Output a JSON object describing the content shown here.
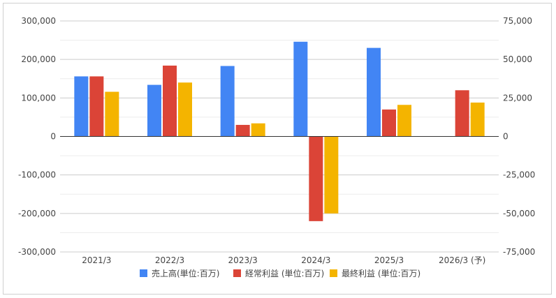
{
  "chart_data": {
    "type": "bar",
    "categories": [
      "2021/3",
      "2022/3",
      "2023/3",
      "2024/3",
      "2025/3",
      "2026/3 (予)"
    ],
    "series": [
      {
        "name": "売上高(単位:百万)",
        "axis": "left",
        "color": "#4285F4",
        "values": [
          156000,
          134000,
          183000,
          246000,
          230000,
          null
        ]
      },
      {
        "name": "経常利益 (単位:百万)",
        "axis": "right",
        "color": "#DB4437",
        "values": [
          39000,
          46000,
          7500,
          -55000,
          17500,
          30000
        ]
      },
      {
        "name": "最終利益 (単位:百万)",
        "axis": "right",
        "color": "#F4B400",
        "values": [
          29000,
          35000,
          8500,
          -50000,
          20500,
          22000
        ]
      }
    ],
    "left_axis": {
      "range": [
        -300000,
        300000
      ],
      "ticks": [
        {
          "value": 300000,
          "label": "300,000"
        },
        {
          "value": 200000,
          "label": "200,000"
        },
        {
          "value": 100000,
          "label": "100,000"
        },
        {
          "value": 0,
          "label": "0"
        },
        {
          "value": -100000,
          "label": "-100,000"
        },
        {
          "value": -200000,
          "label": "-200,000"
        },
        {
          "value": -300000,
          "label": "-300,000"
        }
      ]
    },
    "right_axis": {
      "range": [
        -75000,
        75000
      ],
      "ticks": [
        {
          "value": 75000,
          "label": "75,000"
        },
        {
          "value": 50000,
          "label": "50,000"
        },
        {
          "value": 25000,
          "label": "25,000"
        },
        {
          "value": 0,
          "label": "0"
        },
        {
          "value": -25000,
          "label": "-25,000"
        },
        {
          "value": -50000,
          "label": "-50,000"
        },
        {
          "value": -75000,
          "label": "-75,000"
        }
      ]
    },
    "grid": true,
    "minor_grid": true,
    "legend_position": "bottom"
  }
}
